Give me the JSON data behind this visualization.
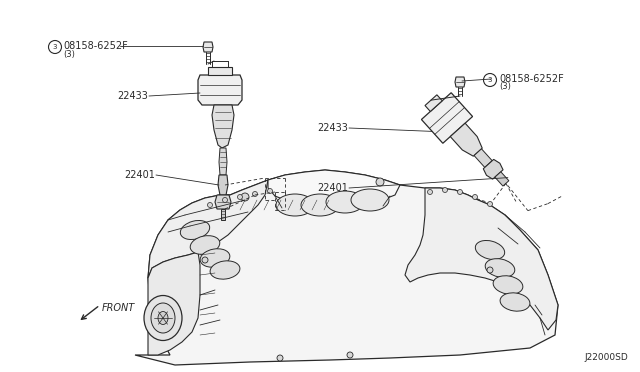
{
  "bg_color": "#ffffff",
  "line_color": "#2a2a2a",
  "text_color": "#2a2a2a",
  "diagram_id": "J22000SD",
  "figsize": [
    6.4,
    3.72
  ],
  "dpi": 100,
  "labels": {
    "bolt_left": "08158-6252F",
    "bolt_left_qty": "(3)",
    "coil_left": "22433",
    "plug_left": "22401",
    "bolt_right": "08158-6252F",
    "bolt_right_qty": "(3)",
    "coil_right": "22433",
    "plug_right": "22401",
    "front": "FRONT"
  }
}
